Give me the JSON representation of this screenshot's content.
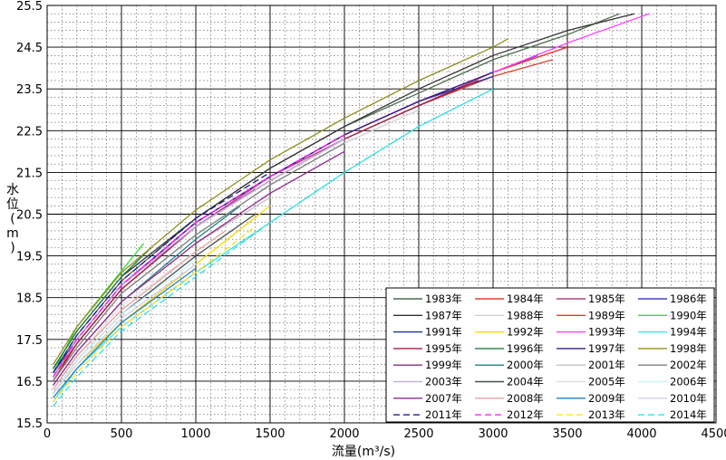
{
  "chart_data": {
    "type": "line",
    "title": "",
    "xlabel": "流量(m³/s)",
    "ylabel": "水位(m)",
    "xlim": [
      0,
      4500
    ],
    "ylim": [
      15.5,
      25.5
    ],
    "x_ticks": [
      "0",
      "500",
      "1000",
      "1500",
      "2000",
      "2500",
      "3000",
      "3500",
      "4000",
      "4500"
    ],
    "y_ticks": [
      "15.5",
      "16.5",
      "17.5",
      "18.5",
      "19.5",
      "20.5",
      "21.5",
      "22.5",
      "23.5",
      "24.5",
      "25.5"
    ],
    "grid": true,
    "legend_position": "bottom-right",
    "series": [
      {
        "name": "1983年",
        "color": "#4d6b4d",
        "dash": "solid",
        "points": [
          [
            40,
            16.7
          ],
          [
            200,
            17.6
          ],
          [
            500,
            18.9
          ],
          [
            1000,
            20.4
          ],
          [
            1500,
            21.6
          ],
          [
            2000,
            22.6
          ],
          [
            2500,
            23.4
          ],
          [
            3000,
            24.2
          ],
          [
            3500,
            24.8
          ],
          [
            3850,
            25.3
          ]
        ]
      },
      {
        "name": "1984年",
        "color": "#e0402f",
        "dash": "solid",
        "points": [
          [
            40,
            16.6
          ],
          [
            200,
            17.4
          ],
          [
            500,
            18.7
          ],
          [
            1000,
            20.2
          ],
          [
            1500,
            21.3
          ],
          [
            2000,
            22.3
          ],
          [
            2500,
            23.1
          ],
          [
            3000,
            23.8
          ],
          [
            3400,
            24.2
          ]
        ]
      },
      {
        "name": "1985年",
        "color": "#b04080",
        "dash": "solid",
        "points": [
          [
            40,
            16.5
          ],
          [
            200,
            17.4
          ],
          [
            500,
            18.7
          ],
          [
            1000,
            20.2
          ],
          [
            1500,
            21.4
          ],
          [
            2000,
            22.3
          ],
          [
            2500,
            23.1
          ],
          [
            3000,
            23.9
          ],
          [
            3500,
            24.5
          ]
        ]
      },
      {
        "name": "1986年",
        "color": "#4040c0",
        "dash": "solid",
        "points": [
          [
            40,
            16.6
          ],
          [
            200,
            17.5
          ],
          [
            500,
            18.8
          ],
          [
            1000,
            20.3
          ],
          [
            1500,
            21.4
          ],
          [
            2000,
            22.4
          ],
          [
            2500,
            23.2
          ],
          [
            3000,
            23.9
          ],
          [
            3300,
            24.3
          ]
        ]
      },
      {
        "name": "1987年",
        "color": "#333333",
        "dash": "solid",
        "points": [
          [
            40,
            16.8
          ],
          [
            200,
            17.7
          ],
          [
            500,
            19.0
          ],
          [
            1000,
            20.4
          ],
          [
            1500,
            21.6
          ],
          [
            2000,
            22.6
          ],
          [
            2500,
            23.5
          ],
          [
            3000,
            24.3
          ],
          [
            3500,
            24.9
          ],
          [
            3950,
            25.3
          ]
        ]
      },
      {
        "name": "1988年",
        "color": "#d0d0d0",
        "dash": "solid",
        "points": [
          [
            40,
            16.5
          ],
          [
            200,
            17.3
          ],
          [
            500,
            18.6
          ],
          [
            1000,
            20.0
          ],
          [
            1500,
            21.2
          ],
          [
            2000,
            22.2
          ],
          [
            2500,
            23.0
          ]
        ]
      },
      {
        "name": "1989年",
        "color": "#ff3030",
        "dash": "solid",
        "points": [
          [
            40,
            16.6
          ],
          [
            200,
            17.5
          ],
          [
            500,
            18.8
          ],
          [
            1000,
            20.3
          ],
          [
            1500,
            21.4
          ],
          [
            2000,
            22.4
          ],
          [
            2500,
            23.2
          ],
          [
            3000,
            23.9
          ],
          [
            3500,
            24.5
          ]
        ]
      },
      {
        "name": "1990年",
        "color": "#30e030",
        "dash": "solid",
        "points": [
          [
            40,
            16.7
          ],
          [
            200,
            17.8
          ],
          [
            400,
            18.7
          ],
          [
            650,
            19.8
          ]
        ]
      },
      {
        "name": "1991年",
        "color": "#2030a0",
        "dash": "solid",
        "points": [
          [
            40,
            16.7
          ],
          [
            200,
            17.5
          ],
          [
            500,
            18.8
          ],
          [
            1000,
            20.3
          ],
          [
            1500,
            21.4
          ],
          [
            2000,
            22.4
          ],
          [
            2500,
            23.2
          ],
          [
            3000,
            23.8
          ]
        ]
      },
      {
        "name": "1992年",
        "color": "#ffd700",
        "dash": "solid",
        "points": [
          [
            40,
            16.2
          ],
          [
            200,
            16.9
          ],
          [
            500,
            17.9
          ],
          [
            1000,
            19.3
          ],
          [
            1500,
            20.7
          ]
        ]
      },
      {
        "name": "1993年",
        "color": "#ff40ff",
        "dash": "solid",
        "points": [
          [
            40,
            16.6
          ],
          [
            200,
            17.5
          ],
          [
            500,
            18.8
          ],
          [
            1000,
            20.3
          ],
          [
            1500,
            21.4
          ],
          [
            2000,
            22.4
          ],
          [
            2500,
            23.2
          ],
          [
            3000,
            23.9
          ],
          [
            3500,
            24.6
          ],
          [
            4050,
            25.3
          ]
        ]
      },
      {
        "name": "1994年",
        "color": "#40e0e0",
        "dash": "solid",
        "points": [
          [
            40,
            16.0
          ],
          [
            200,
            16.8
          ],
          [
            500,
            17.8
          ],
          [
            1000,
            19.1
          ],
          [
            1500,
            20.3
          ],
          [
            2000,
            21.5
          ],
          [
            2500,
            22.6
          ],
          [
            3000,
            23.5
          ]
        ]
      },
      {
        "name": "1995年",
        "color": "#a02040",
        "dash": "solid",
        "points": [
          [
            40,
            16.5
          ],
          [
            200,
            17.4
          ],
          [
            500,
            18.7
          ],
          [
            1000,
            20.2
          ],
          [
            1500,
            21.3
          ],
          [
            2000,
            22.3
          ],
          [
            2500,
            23.1
          ],
          [
            2900,
            23.7
          ]
        ]
      },
      {
        "name": "1996年",
        "color": "#208040",
        "dash": "solid",
        "points": [
          [
            40,
            16.8
          ],
          [
            200,
            17.7
          ],
          [
            500,
            19.0
          ],
          [
            700,
            19.7
          ]
        ]
      },
      {
        "name": "1997年",
        "color": "#302080",
        "dash": "solid",
        "points": [
          [
            40,
            16.6
          ],
          [
            200,
            17.5
          ],
          [
            500,
            18.8
          ],
          [
            1000,
            20.3
          ],
          [
            1500,
            21.4
          ],
          [
            2000,
            22.4
          ],
          [
            2500,
            23.2
          ],
          [
            3000,
            23.9
          ]
        ]
      },
      {
        "name": "1998年",
        "color": "#909020",
        "dash": "solid",
        "points": [
          [
            40,
            16.9
          ],
          [
            200,
            17.8
          ],
          [
            500,
            19.1
          ],
          [
            1000,
            20.6
          ],
          [
            1500,
            21.8
          ],
          [
            2000,
            22.8
          ],
          [
            2500,
            23.7
          ],
          [
            3000,
            24.5
          ],
          [
            3100,
            24.7
          ]
        ]
      },
      {
        "name": "1999年",
        "color": "#803080",
        "dash": "solid",
        "points": [
          [
            40,
            16.6
          ],
          [
            200,
            17.5
          ],
          [
            500,
            18.8
          ],
          [
            1000,
            20.2
          ],
          [
            1400,
            21.1
          ]
        ]
      },
      {
        "name": "2000年",
        "color": "#208080",
        "dash": "solid",
        "points": [
          [
            40,
            16.4
          ],
          [
            200,
            17.2
          ],
          [
            500,
            18.4
          ],
          [
            1000,
            19.9
          ],
          [
            1300,
            20.7
          ]
        ]
      },
      {
        "name": "2001年",
        "color": "#c0c0c0",
        "dash": "solid",
        "points": [
          [
            40,
            16.4
          ],
          [
            200,
            17.2
          ],
          [
            500,
            18.4
          ],
          [
            1000,
            19.8
          ],
          [
            1500,
            20.9
          ]
        ]
      },
      {
        "name": "2002年",
        "color": "#808080",
        "dash": "solid",
        "points": [
          [
            40,
            16.5
          ],
          [
            200,
            17.3
          ],
          [
            500,
            18.6
          ],
          [
            1000,
            20.0
          ],
          [
            1500,
            21.2
          ],
          [
            2000,
            22.2
          ]
        ]
      },
      {
        "name": "2003年",
        "color": "#c8b0e8",
        "dash": "solid",
        "points": [
          [
            40,
            16.6
          ],
          [
            200,
            17.5
          ],
          [
            500,
            18.8
          ],
          [
            1000,
            20.2
          ],
          [
            1500,
            21.3
          ],
          [
            2000,
            22.3
          ]
        ]
      },
      {
        "name": "2004年",
        "color": "#405050",
        "dash": "solid",
        "points": [
          [
            40,
            16.2
          ],
          [
            200,
            17.0
          ],
          [
            500,
            18.1
          ],
          [
            1000,
            19.5
          ],
          [
            1400,
            20.5
          ]
        ]
      },
      {
        "name": "2005年",
        "color": "#e0e0e0",
        "dash": "solid",
        "points": [
          [
            40,
            16.3
          ],
          [
            200,
            17.1
          ],
          [
            500,
            18.3
          ],
          [
            1000,
            19.6
          ]
        ]
      },
      {
        "name": "2006年",
        "color": "#d0f0f8",
        "dash": "solid",
        "points": [
          [
            40,
            16.2
          ],
          [
            200,
            17.0
          ],
          [
            500,
            18.1
          ],
          [
            1000,
            19.4
          ]
        ]
      },
      {
        "name": "2007年",
        "color": "#902890",
        "dash": "solid",
        "points": [
          [
            40,
            16.4
          ],
          [
            200,
            17.2
          ],
          [
            500,
            18.4
          ],
          [
            1000,
            19.8
          ],
          [
            1500,
            21.0
          ],
          [
            2000,
            22.0
          ]
        ]
      },
      {
        "name": "2008年",
        "color": "#e8a0a0",
        "dash": "solid",
        "points": [
          [
            40,
            16.3
          ],
          [
            200,
            17.1
          ],
          [
            500,
            18.2
          ],
          [
            1000,
            19.6
          ],
          [
            1200,
            20.1
          ]
        ]
      },
      {
        "name": "2009年",
        "color": "#2080c0",
        "dash": "solid",
        "points": [
          [
            40,
            16.1
          ],
          [
            200,
            16.8
          ],
          [
            500,
            17.9
          ],
          [
            1000,
            19.2
          ]
        ]
      },
      {
        "name": "2010年",
        "color": "#d0d0f0",
        "dash": "solid",
        "points": [
          [
            40,
            16.2
          ],
          [
            200,
            16.9
          ],
          [
            500,
            18.0
          ],
          [
            1000,
            19.3
          ]
        ]
      },
      {
        "name": "2011年",
        "color": "#1a1a80",
        "dash": "dash",
        "points": [
          [
            40,
            16.7
          ],
          [
            200,
            17.6
          ],
          [
            500,
            18.9
          ],
          [
            1000,
            20.4
          ],
          [
            1500,
            21.5
          ]
        ]
      },
      {
        "name": "2012年",
        "color": "#ff20ff",
        "dash": "dash",
        "points": [
          [
            40,
            16.6
          ],
          [
            200,
            17.5
          ],
          [
            500,
            18.8
          ],
          [
            1000,
            20.3
          ],
          [
            1500,
            21.4
          ],
          [
            2000,
            22.4
          ]
        ]
      },
      {
        "name": "2013年",
        "color": "#ffe020",
        "dash": "dash",
        "points": [
          [
            40,
            16.0
          ],
          [
            200,
            16.7
          ],
          [
            500,
            17.8
          ],
          [
            1000,
            19.1
          ],
          [
            1400,
            20.2
          ]
        ]
      },
      {
        "name": "2014年",
        "color": "#30e0e8",
        "dash": "dash",
        "points": [
          [
            40,
            15.9
          ],
          [
            200,
            16.6
          ],
          [
            500,
            17.7
          ],
          [
            1000,
            19.0
          ],
          [
            1500,
            20.3
          ],
          [
            2000,
            21.5
          ],
          [
            2500,
            22.6
          ],
          [
            3000,
            23.5
          ]
        ]
      }
    ]
  }
}
